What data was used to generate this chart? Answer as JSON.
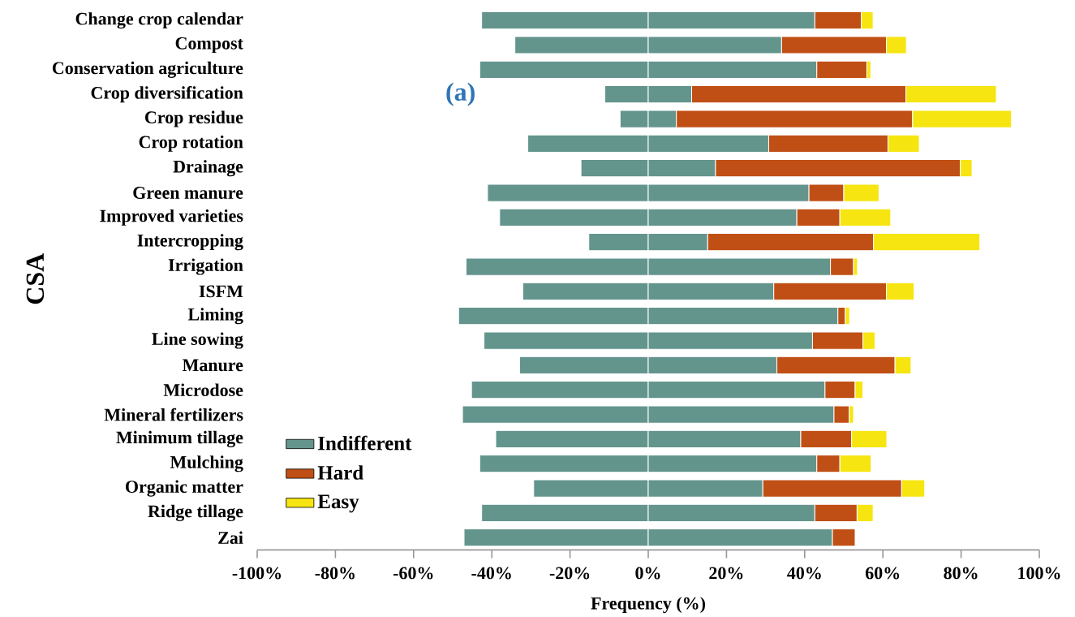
{
  "chart_data": {
    "type": "bar",
    "orientation": "horizontal",
    "stacked": true,
    "xlabel": "Frequency (%)",
    "ylabel": "CSA",
    "annotations": [
      "(a)"
    ],
    "categories": [
      "Change crop calendar",
      "Compost",
      "Conservation agriculture",
      "Crop diversification",
      "Crop residue",
      "Crop rotation",
      "Drainage",
      "Green manure",
      "Improved varieties",
      "Intercropping",
      "Irrigation",
      "ISFM",
      "Liming",
      "Line sowing",
      "Manure",
      "Microdose",
      "Mineral fertilizers",
      "Minimum tillage",
      "Mulching",
      "Organic matter",
      "Ridge tillage",
      "Zai"
    ],
    "series": [
      {
        "name": "Indifferent",
        "color": "#63958d",
        "values": [
          -42.6,
          -34.1,
          -43.1,
          -11.1,
          -7.2,
          -30.8,
          -17.2,
          -41.1,
          -38.0,
          -15.2,
          -46.6,
          -32.1,
          -48.5,
          -42.0,
          -32.9,
          -45.2,
          -47.5,
          -39.0,
          -43.1,
          -29.3,
          -42.6,
          -47.1
        ]
      },
      {
        "color": "#63958d",
        "values": [
          42.6,
          34.1,
          43.1,
          11.1,
          7.2,
          30.8,
          17.2,
          41.1,
          38.0,
          15.2,
          46.6,
          32.1,
          48.5,
          42.0,
          32.9,
          45.2,
          47.5,
          39.0,
          43.1,
          29.3,
          42.6,
          47.1
        ]
      },
      {
        "name": "Hard",
        "color": "#c04f15",
        "values": [
          11.9,
          26.8,
          12.8,
          54.8,
          60.4,
          30.5,
          62.6,
          8.9,
          11.0,
          42.4,
          5.9,
          28.8,
          1.9,
          12.9,
          30.2,
          7.7,
          3.9,
          13.0,
          5.9,
          35.5,
          10.8,
          5.8
        ]
      },
      {
        "name": "Easy",
        "color": "#f6e510",
        "values": [
          3.0,
          5.1,
          1.0,
          23.1,
          25.3,
          8.0,
          3.0,
          9.0,
          13.0,
          27.2,
          1.0,
          7.1,
          1.1,
          3.1,
          4.1,
          2.0,
          1.1,
          9.0,
          8.0,
          5.9,
          4.1,
          null
        ]
      }
    ],
    "xlim": [
      -100,
      100
    ],
    "xticks": [
      {
        "value": -100,
        "label": "-100%"
      },
      {
        "value": -80,
        "label": "-80%"
      },
      {
        "value": -60,
        "label": "-60%"
      },
      {
        "value": -40,
        "label": "-40%"
      },
      {
        "value": -20,
        "label": "-20%"
      },
      {
        "value": 0,
        "label": "0%"
      },
      {
        "value": 20,
        "label": "20%"
      },
      {
        "value": 40,
        "label": "40%"
      },
      {
        "value": 60,
        "label": "60%"
      },
      {
        "value": 80,
        "label": "80%"
      },
      {
        "value": 100,
        "label": "100%"
      }
    ],
    "legend": "bottom left",
    "grid": false
  }
}
